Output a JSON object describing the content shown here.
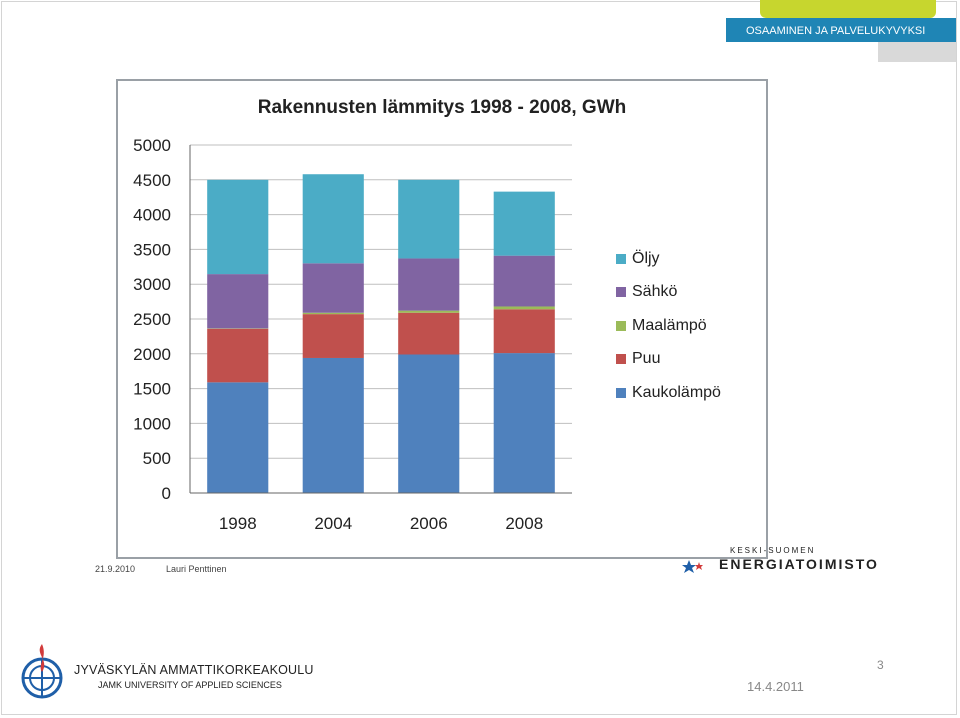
{
  "header": {
    "band_text": "OSAAMINEN JA PALVELUKYVYKSI"
  },
  "chart_data": {
    "type": "bar",
    "stacked": true,
    "title": "Rakennusten lämmitys  1998 - 2008, GWh",
    "xlabel": "",
    "ylabel": "",
    "categories": [
      "1998",
      "2004",
      "2006",
      "2008"
    ],
    "ylim": [
      0,
      5000
    ],
    "yticks": [
      "0",
      "500",
      "1000",
      "1500",
      "2000",
      "2500",
      "3000",
      "3500",
      "4000",
      "4500",
      "5000"
    ],
    "grid": true,
    "legend_position": "right",
    "series": [
      {
        "name": "Kaukolämpö",
        "color": "#4f81bd",
        "values": [
          1590,
          1940,
          1990,
          2010
        ]
      },
      {
        "name": "Puu",
        "color": "#c0504d",
        "values": [
          770,
          630,
          600,
          630
        ]
      },
      {
        "name": "Maalämpö",
        "color": "#9bbb59",
        "values": [
          5,
          20,
          30,
          40
        ]
      },
      {
        "name": "Sähkö",
        "color": "#8064a2",
        "values": [
          780,
          710,
          750,
          730
        ]
      },
      {
        "name": "Öljy",
        "color": "#4bacc6",
        "values": [
          1355,
          1280,
          1130,
          920
        ]
      }
    ],
    "legend_order": [
      "Öljy",
      "Sähkö",
      "Maalämpö",
      "Puu",
      "Kaukolämpö"
    ]
  },
  "source": {
    "date": "21.9.2010",
    "author": "Lauri Penttinen"
  },
  "partner_logo": {
    "line1": "KESKI-SUOMEN",
    "line2": "ENERGIATOIMISTO"
  },
  "footer": {
    "org_name": "JYVÄSKYLÄN AMMATTIKORKEAKOULU",
    "org_sub": "JAMK UNIVERSITY OF APPLIED SCIENCES",
    "date": "14.4.2011",
    "page": "3"
  }
}
